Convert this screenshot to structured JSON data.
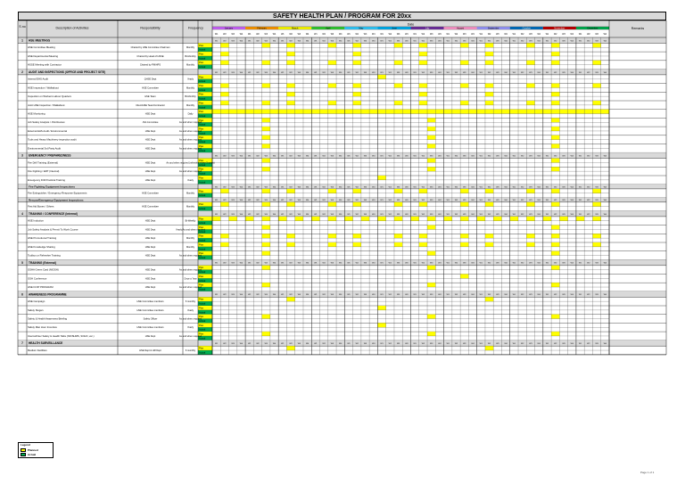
{
  "title": "SAFETY HEALTH PLAN / PROGRAM FOR 20xx",
  "header": {
    "sno": "S.no",
    "description": "Description of Activities",
    "responsibility": "Responsibility",
    "frequency": "Frequency",
    "date": "Date",
    "remarks": "Remarks"
  },
  "months": [
    {
      "name": "January",
      "color": "#cc66ff"
    },
    {
      "name": "February",
      "color": "#ff9900"
    },
    {
      "name": "March",
      "color": "#ffff00"
    },
    {
      "name": "April",
      "color": "#33cc33"
    },
    {
      "name": "May",
      "color": "#33ccff"
    },
    {
      "name": "June",
      "color": "#00b0f0"
    },
    {
      "name": "July",
      "color": "#7030a0"
    },
    {
      "name": "August",
      "color": "#ff99cc"
    },
    {
      "name": "September",
      "color": "#9999ff"
    },
    {
      "name": "October",
      "color": "#0070c0"
    },
    {
      "name": "November",
      "color": "#c00000"
    },
    {
      "name": "December",
      "color": "#00b050"
    }
  ],
  "week_label": "W",
  "plan_label": "Plan",
  "actual_label": "Actual",
  "colors": {
    "plan": "#ffff00",
    "actual": "#00b050",
    "section": "#d9d9d9",
    "title": "#d9d9d9"
  },
  "sections": [
    {
      "num": "1",
      "title": "HSE MEETINGS",
      "items": [
        {
          "desc": "HSE Committee Meeting",
          "resp": "Chaired by HSE Committee Chairman",
          "freq": "Monthly"
        },
        {
          "desc": "HSE Departmental Meeting",
          "resp": "Chaired by Head of HSSE",
          "freq": "Bi-Monthly"
        },
        {
          "desc": "HSSE Meeting with Contractor",
          "resp": "Chaired by PM/HPS",
          "freq": "Monthly"
        }
      ]
    },
    {
      "num": "2",
      "title": "AUDIT AND INSPECTIONS (OFFICE AND PROJECT SITE)",
      "items": [
        {
          "desc": "Internal EHS Audit",
          "resp": "QHSE Dept",
          "freq": "Yearly"
        },
        {
          "desc": "HSE Inspection / Walkabout",
          "resp": "HSE Committee",
          "freq": "Monthly"
        },
        {
          "desc": "Inspection on Workers Labour Quarters",
          "resp": "HSE Team",
          "freq": "Bi-Monthly"
        },
        {
          "desc": "Joint HSE Inspection / Walkabout",
          "resp": "Client/HSE Team/Contractor",
          "freq": "Monthly"
        },
        {
          "desc": "HSE Monitoring",
          "resp": "HSE Dept",
          "freq": "Daily"
        },
        {
          "desc": "Job Safety Analysis / JSA Review",
          "resp": "JSA Committee",
          "freq": "As and when required"
        },
        {
          "desc": "External EHS Audit / Environmental",
          "resp": "HSE Dept",
          "freq": "As and when required"
        },
        {
          "desc": "Tools and Heavy Machinery inspection audit",
          "resp": "HSE Dept",
          "freq": "As and when required"
        },
        {
          "desc": "Environmental 3rd Party Audit",
          "resp": "HSE Dept",
          "freq": "As and when required"
        }
      ]
    },
    {
      "num": "3",
      "title": "EMERGENCY PREPAREDNESS",
      "items": [
        {
          "desc": "Fire Drill Training (External)",
          "resp": "HSE Dept",
          "freq": "As and when required (refresher every 3 years)"
        },
        {
          "desc": "Fire Fighting / ERT (Internal)",
          "resp": "HSE Dept",
          "freq": "As and when required"
        },
        {
          "desc": "Emergency Drill Practical Training",
          "resp": "HSE Dept",
          "freq": "Yearly"
        },
        {
          "sub": "Fire Fighting Equipment Inspections"
        },
        {
          "desc": "Fire Extinguisher / Emergency Response Equipments",
          "resp": "HSE Committee",
          "freq": "Monthly"
        },
        {
          "sub": "Rescue/Emergency Equipment Inspections"
        },
        {
          "desc": "First Aid Boxes / Others",
          "resp": "HSE Committee",
          "freq": "Monthly"
        }
      ]
    },
    {
      "num": "4",
      "title": "TRAINING / CONFERENCE (Internal)",
      "items": [
        {
          "desc": "HSE Induction",
          "resp": "HSE Dept",
          "freq": "Bi-Weekly"
        },
        {
          "desc": "Job Safety Analysis & Permit To Work Course",
          "resp": "HSE Dept",
          "freq": "Yearly/As and when required"
        },
        {
          "desc": "HSE Promotional Training",
          "resp": "HSE Dept",
          "freq": "Monthly"
        },
        {
          "desc": "HSE Knowledge Sharing",
          "resp": "HSE Dept",
          "freq": "Monthly"
        },
        {
          "desc": "Toolbox or Refresher Training",
          "resp": "HSE Dept",
          "freq": "As and when required"
        }
      ]
    },
    {
      "num": "5",
      "title": "TRAINING (External)",
      "items": [
        {
          "desc": "OSHA Green Card (NIOSH)",
          "resp": "HSE Dept",
          "freq": "As and when required"
        },
        {
          "desc": "OSH Conference",
          "resp": "HSE Dept",
          "freq": "Once a Year"
        },
        {
          "desc": "HSE ICOP PROGRAM",
          "resp": "HSE Dept",
          "freq": "As and when required"
        }
      ]
    },
    {
      "num": "6",
      "title": "AWARENESS PROGRAMME",
      "items": [
        {
          "desc": "HSE Campaign",
          "resp": "HSE Committee members",
          "freq": "6 monthly"
        },
        {
          "desc": "Safety Slogan",
          "resp": "HSE Committee members",
          "freq": "Yearly"
        },
        {
          "desc": "Safety & Health Awareness Briefing",
          "resp": "Safety Officer",
          "freq": "As and when required"
        },
        {
          "desc": "Safety Man Hour Incentive",
          "resp": "HSE Committee members",
          "freq": "Yearly"
        },
        {
          "desc": "Internal/Inter Safety & Health Talks (NIOSHMS, SOHO, etc.)",
          "resp": "HSE Dept",
          "freq": "As and when required"
        }
      ]
    },
    {
      "num": "7",
      "title": "HEALTH SURVEILLANCE",
      "items": [
        {
          "desc": "Medium Facilities",
          "resp": "HSE Dept & HR Dept",
          "freq": "6 monthly"
        }
      ]
    }
  ],
  "legend": {
    "title": "Legend",
    "planned": "Planned",
    "actual": "Actual"
  },
  "page_number": "Page 1 of 1"
}
